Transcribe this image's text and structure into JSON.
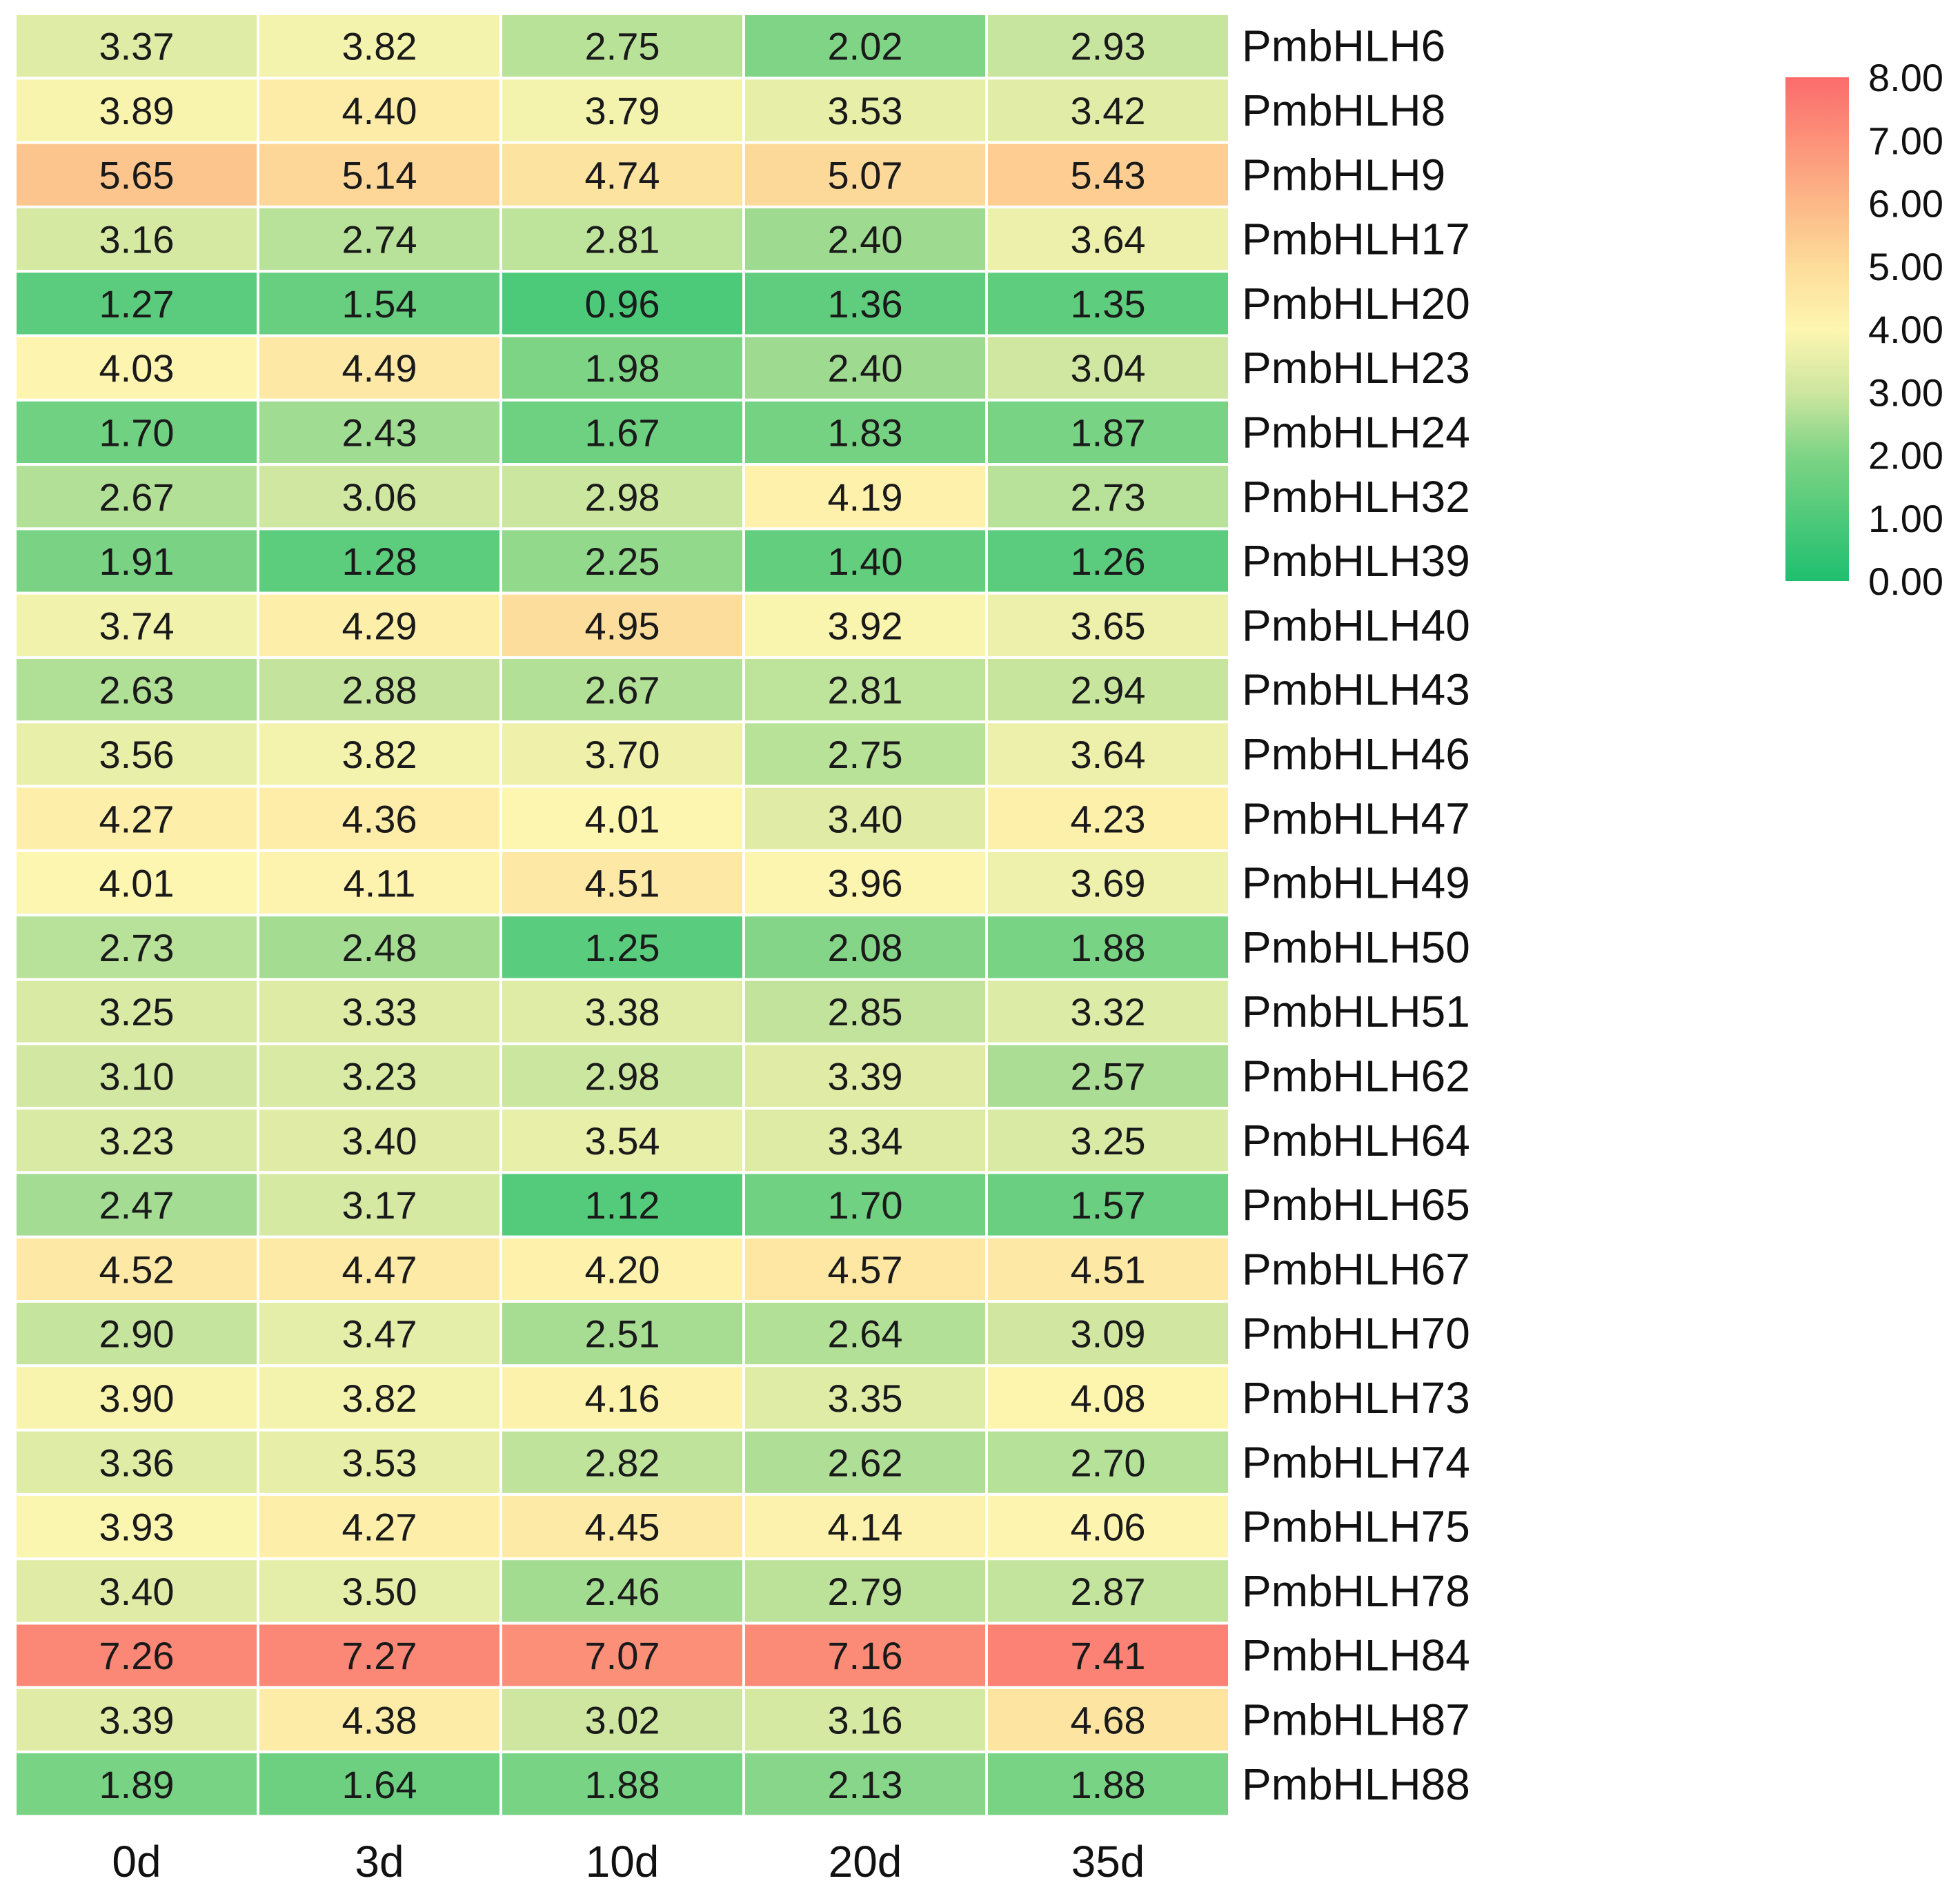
{
  "chart_data": {
    "type": "heatmap",
    "title": "",
    "columns": [
      "0d",
      "3d",
      "10d",
      "20d",
      "35d"
    ],
    "rows": [
      "PmbHLH6",
      "PmbHLH8",
      "PmbHLH9",
      "PmbHLH17",
      "PmbHLH20",
      "PmbHLH23",
      "PmbHLH24",
      "PmbHLH32",
      "PmbHLH39",
      "PmbHLH40",
      "PmbHLH43",
      "PmbHLH46",
      "PmbHLH47",
      "PmbHLH49",
      "PmbHLH50",
      "PmbHLH51",
      "PmbHLH62",
      "PmbHLH64",
      "PmbHLH65",
      "PmbHLH67",
      "PmbHLH70",
      "PmbHLH73",
      "PmbHLH74",
      "PmbHLH75",
      "PmbHLH78",
      "PmbHLH84",
      "PmbHLH87",
      "PmbHLH88"
    ],
    "values": [
      [
        "3.37",
        "3.82",
        "2.75",
        "2.02",
        "2.93"
      ],
      [
        "3.89",
        "4.40",
        "3.79",
        "3.53",
        "3.42"
      ],
      [
        "5.65",
        "5.14",
        "4.74",
        "5.07",
        "5.43"
      ],
      [
        "3.16",
        "2.74",
        "2.81",
        "2.40",
        "3.64"
      ],
      [
        "1.27",
        "1.54",
        "0.96",
        "1.36",
        "1.35"
      ],
      [
        "4.03",
        "4.49",
        "1.98",
        "2.40",
        "3.04"
      ],
      [
        "1.70",
        "2.43",
        "1.67",
        "1.83",
        "1.87"
      ],
      [
        "2.67",
        "3.06",
        "2.98",
        "4.19",
        "2.73"
      ],
      [
        "1.91",
        "1.28",
        "2.25",
        "1.40",
        "1.26"
      ],
      [
        "3.74",
        "4.29",
        "4.95",
        "3.92",
        "3.65"
      ],
      [
        "2.63",
        "2.88",
        "2.67",
        "2.81",
        "2.94"
      ],
      [
        "3.56",
        "3.82",
        "3.70",
        "2.75",
        "3.64"
      ],
      [
        "4.27",
        "4.36",
        "4.01",
        "3.40",
        "4.23"
      ],
      [
        "4.01",
        "4.11",
        "4.51",
        "3.96",
        "3.69"
      ],
      [
        "2.73",
        "2.48",
        "1.25",
        "2.08",
        "1.88"
      ],
      [
        "3.25",
        "3.33",
        "3.38",
        "2.85",
        "3.32"
      ],
      [
        "3.10",
        "3.23",
        "2.98",
        "3.39",
        "2.57"
      ],
      [
        "3.23",
        "3.40",
        "3.54",
        "3.34",
        "3.25"
      ],
      [
        "2.47",
        "3.17",
        "1.12",
        "1.70",
        "1.57"
      ],
      [
        "4.52",
        "4.47",
        "4.20",
        "4.57",
        "4.51"
      ],
      [
        "2.90",
        "3.47",
        "2.51",
        "2.64",
        "3.09"
      ],
      [
        "3.90",
        "3.82",
        "4.16",
        "3.35",
        "4.08"
      ],
      [
        "3.36",
        "3.53",
        "2.82",
        "2.62",
        "2.70"
      ],
      [
        "3.93",
        "4.27",
        "4.45",
        "4.14",
        "4.06"
      ],
      [
        "3.40",
        "3.50",
        "2.46",
        "2.79",
        "2.87"
      ],
      [
        "7.26",
        "7.27",
        "7.07",
        "7.16",
        "7.41"
      ],
      [
        "3.39",
        "4.38",
        "3.02",
        "3.16",
        "4.68"
      ],
      [
        "1.89",
        "1.64",
        "1.88",
        "2.13",
        "1.88"
      ]
    ],
    "color_scale": {
      "min": 0,
      "max": 8,
      "stops": [
        {
          "value": 0,
          "color": "#1fbf6f"
        },
        {
          "value": 2,
          "color": "#7ed485"
        },
        {
          "value": 3,
          "color": "#cde6a0"
        },
        {
          "value": 4,
          "color": "#fdf6b0"
        },
        {
          "value": 5,
          "color": "#fddc9a"
        },
        {
          "value": 6,
          "color": "#fcb888"
        },
        {
          "value": 8,
          "color": "#fb6b6b"
        }
      ]
    },
    "legend": {
      "ticks": [
        "8.00",
        "7.00",
        "6.00",
        "5.00",
        "4.00",
        "3.00",
        "2.00",
        "1.00",
        "0.00"
      ],
      "position": "top-right"
    }
  }
}
